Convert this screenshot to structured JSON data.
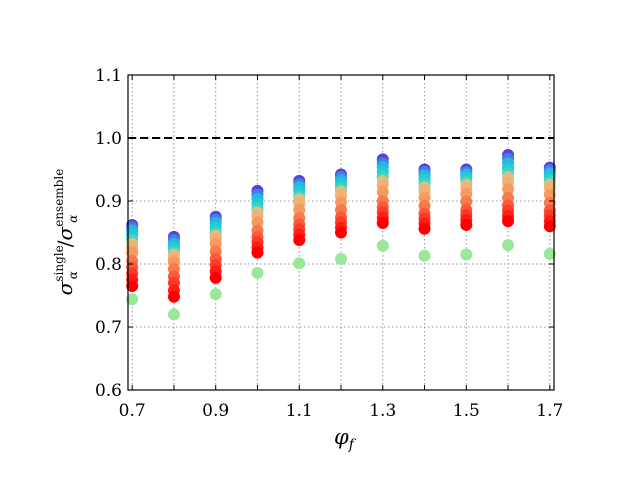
{
  "chart_data": {
    "type": "scatter",
    "xlabel": "φ_f",
    "ylabel": "σ_α^single / σ_α^ensemble",
    "xlim": [
      0.69,
      1.71
    ],
    "ylim": [
      0.6,
      1.1
    ],
    "xticks": [
      0.7,
      0.8,
      0.9,
      1.0,
      1.1,
      1.2,
      1.3,
      1.4,
      1.5,
      1.6,
      1.7
    ],
    "xtick_labels": [
      "0.7",
      "",
      "0.9",
      "",
      "1.1",
      "",
      "1.3",
      "",
      "1.5",
      "",
      "1.7"
    ],
    "yticks": [
      0.6,
      0.7,
      0.8,
      0.9,
      1.0,
      1.1
    ],
    "ytick_labels": [
      "0.6",
      "0.7",
      "0.8",
      "0.9",
      "1.0",
      "1.1"
    ],
    "grid": true,
    "reference_line": {
      "y": 1.0,
      "style": "dashed",
      "color": "#000000"
    },
    "x": [
      0.7,
      0.8,
      0.9,
      1.0,
      1.1,
      1.2,
      1.3,
      1.4,
      1.5,
      1.6,
      1.7
    ],
    "colormap": "rainbow",
    "series": [
      {
        "color": "#5a3fe0",
        "values": [
          0.862,
          0.843,
          0.875,
          0.916,
          0.932,
          0.942,
          0.966,
          0.95,
          0.95,
          0.973,
          0.953
        ]
      },
      {
        "color": "#3f7fe6",
        "values": [
          0.858,
          0.838,
          0.87,
          0.91,
          0.927,
          0.938,
          0.96,
          0.946,
          0.946,
          0.967,
          0.949
        ]
      },
      {
        "color": "#26b6e0",
        "values": [
          0.853,
          0.832,
          0.865,
          0.903,
          0.922,
          0.933,
          0.954,
          0.941,
          0.942,
          0.96,
          0.944
        ]
      },
      {
        "color": "#22c9d9",
        "values": [
          0.846,
          0.826,
          0.858,
          0.896,
          0.916,
          0.927,
          0.946,
          0.935,
          0.937,
          0.952,
          0.939
        ]
      },
      {
        "color": "#3cd6bf",
        "values": [
          0.838,
          0.82,
          0.85,
          0.888,
          0.908,
          0.92,
          0.938,
          0.928,
          0.931,
          0.944,
          0.932
        ]
      },
      {
        "color": "#9ae79a",
        "values": [
          0.744,
          0.72,
          0.752,
          0.786,
          0.801,
          0.808,
          0.829,
          0.813,
          0.815,
          0.83,
          0.816
        ]
      },
      {
        "color": "#d6c08a",
        "values": [
          0.832,
          0.815,
          0.845,
          0.882,
          0.903,
          0.915,
          0.932,
          0.922,
          0.926,
          0.938,
          0.926
        ]
      },
      {
        "color": "#f2b173",
        "values": [
          0.826,
          0.81,
          0.84,
          0.876,
          0.896,
          0.908,
          0.925,
          0.915,
          0.92,
          0.93,
          0.92
        ]
      },
      {
        "color": "#f79a5f",
        "values": [
          0.818,
          0.803,
          0.832,
          0.866,
          0.886,
          0.898,
          0.914,
          0.905,
          0.911,
          0.919,
          0.91
        ]
      },
      {
        "color": "#f97a4c",
        "values": [
          0.805,
          0.792,
          0.82,
          0.853,
          0.873,
          0.886,
          0.9,
          0.892,
          0.899,
          0.905,
          0.897
        ]
      },
      {
        "color": "#fb5a3a",
        "values": [
          0.795,
          0.78,
          0.808,
          0.843,
          0.863,
          0.874,
          0.89,
          0.88,
          0.886,
          0.893,
          0.885
        ]
      },
      {
        "color": "#fd3a28",
        "values": [
          0.785,
          0.77,
          0.798,
          0.835,
          0.855,
          0.866,
          0.882,
          0.872,
          0.878,
          0.885,
          0.877
        ]
      },
      {
        "color": "#ff1c12",
        "values": [
          0.775,
          0.758,
          0.788,
          0.826,
          0.846,
          0.858,
          0.873,
          0.864,
          0.87,
          0.876,
          0.868
        ]
      },
      {
        "color": "#ff0000",
        "values": [
          0.765,
          0.748,
          0.778,
          0.818,
          0.838,
          0.85,
          0.865,
          0.856,
          0.862,
          0.868,
          0.86
        ]
      }
    ]
  }
}
